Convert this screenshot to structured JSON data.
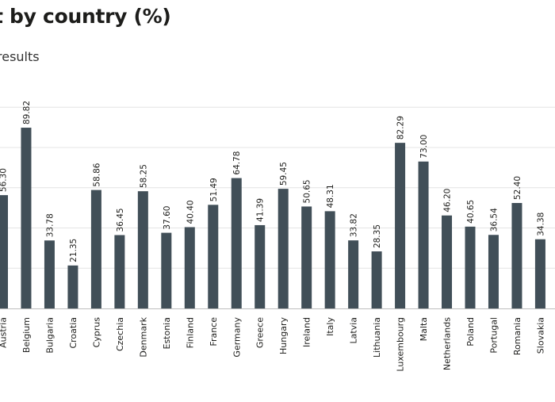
{
  "header": {
    "title": "t by country (%)",
    "subtitle": "results"
  },
  "colors": {
    "bar": "#414f58",
    "grid": "#e4e4e4",
    "baseline": "#bdbdbd",
    "text": "#1d1d1b"
  },
  "chart_data": {
    "type": "bar",
    "title": "t by country (%)",
    "subtitle": "results",
    "xlabel": "",
    "ylabel": "",
    "ylim": [
      0,
      100
    ],
    "grid": true,
    "categories": [
      "Austria",
      "Belgium",
      "Bulgaria",
      "Croatia",
      "Cyprus",
      "Czechia",
      "Denmark",
      "Estonia",
      "Finland",
      "France",
      "Germany",
      "Greece",
      "Hungary",
      "Ireland",
      "Italy",
      "Latvia",
      "Lithuania",
      "Luxembourg",
      "Malta",
      "Netherlands",
      "Poland",
      "Portugal",
      "Romania",
      "Slovakia"
    ],
    "values": [
      56.3,
      89.82,
      33.78,
      21.35,
      58.86,
      36.45,
      58.25,
      37.6,
      40.4,
      51.49,
      64.78,
      41.39,
      59.45,
      50.65,
      48.31,
      33.82,
      28.35,
      82.29,
      73.0,
      46.2,
      40.65,
      36.54,
      52.4,
      34.38
    ],
    "value_labels": [
      "56.30",
      "89.82",
      "33.78",
      "21.35",
      "58.86",
      "36.45",
      "58.25",
      "37.60",
      "40.40",
      "51.49",
      "64.78",
      "41.39",
      "59.45",
      "50.65",
      "48.31",
      "33.82",
      "28.35",
      "82.29",
      "73.00",
      "46.20",
      "40.65",
      "36.54",
      "52.40",
      "34.38"
    ]
  }
}
